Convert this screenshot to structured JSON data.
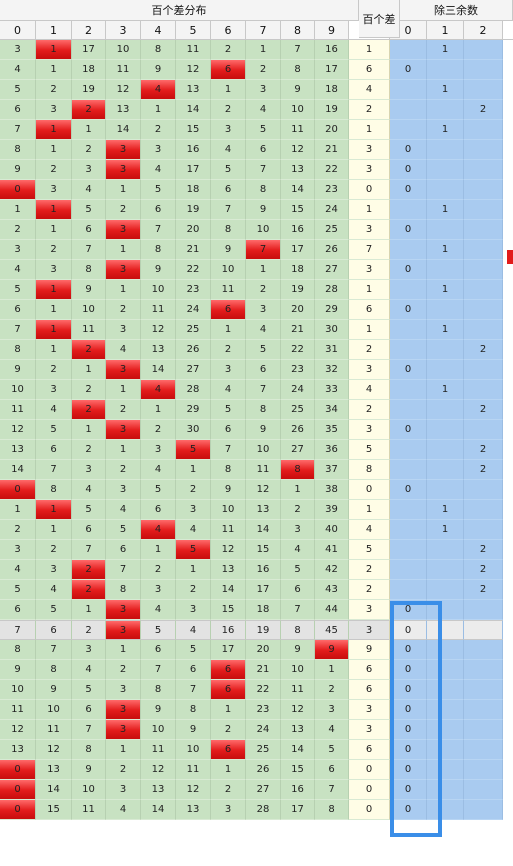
{
  "header": {
    "group_title": "百个差分布",
    "diff_title": "百个差",
    "remainder_title": "除三余数",
    "digit_labels": [
      "0",
      "1",
      "2",
      "3",
      "4",
      "5",
      "6",
      "7",
      "8",
      "9"
    ],
    "remainder_labels": [
      "0",
      "1",
      "2"
    ]
  },
  "colors": {
    "cell_green": "#c8e2c2",
    "hit_red": "#e21b1b",
    "diff_yellow": "#fffde6",
    "remainder_blue": "#a9cbf0",
    "highlight_box": "#3a8ee8"
  },
  "selected_row_index": 29,
  "rows": [
    {
      "cells": [
        "3",
        "1",
        "17",
        "10",
        "8",
        "11",
        "2",
        "1",
        "7",
        "16"
      ],
      "hit": 1,
      "diff": "1",
      "rem": [
        "",
        "1",
        ""
      ]
    },
    {
      "cells": [
        "4",
        "1",
        "18",
        "11",
        "9",
        "12",
        "6",
        "2",
        "8",
        "17"
      ],
      "hit": 6,
      "diff": "6",
      "rem": [
        "0",
        "",
        ""
      ]
    },
    {
      "cells": [
        "5",
        "2",
        "19",
        "12",
        "4",
        "13",
        "1",
        "3",
        "9",
        "18"
      ],
      "hit": 4,
      "diff": "4",
      "rem": [
        "",
        "1",
        ""
      ]
    },
    {
      "cells": [
        "6",
        "3",
        "2",
        "13",
        "1",
        "14",
        "2",
        "4",
        "10",
        "19"
      ],
      "hit": 2,
      "diff": "2",
      "rem": [
        "",
        "",
        "2"
      ]
    },
    {
      "cells": [
        "7",
        "1",
        "1",
        "14",
        "2",
        "15",
        "3",
        "5",
        "11",
        "20"
      ],
      "hit": 1,
      "diff": "1",
      "rem": [
        "",
        "1",
        ""
      ]
    },
    {
      "cells": [
        "8",
        "1",
        "2",
        "3",
        "3",
        "16",
        "4",
        "6",
        "12",
        "21"
      ],
      "hit": 3,
      "diff": "3",
      "rem": [
        "0",
        "",
        ""
      ]
    },
    {
      "cells": [
        "9",
        "2",
        "3",
        "3",
        "4",
        "17",
        "5",
        "7",
        "13",
        "22"
      ],
      "hit": 3,
      "diff": "3",
      "rem": [
        "0",
        "",
        ""
      ]
    },
    {
      "cells": [
        "0",
        "3",
        "4",
        "1",
        "5",
        "18",
        "6",
        "8",
        "14",
        "23"
      ],
      "hit": 0,
      "diff": "0",
      "rem": [
        "0",
        "",
        ""
      ]
    },
    {
      "cells": [
        "1",
        "1",
        "5",
        "2",
        "6",
        "19",
        "7",
        "9",
        "15",
        "24"
      ],
      "hit": 1,
      "diff": "1",
      "rem": [
        "",
        "1",
        ""
      ]
    },
    {
      "cells": [
        "2",
        "1",
        "6",
        "3",
        "7",
        "20",
        "8",
        "10",
        "16",
        "25"
      ],
      "hit": 3,
      "diff": "3",
      "rem": [
        "0",
        "",
        ""
      ]
    },
    {
      "cells": [
        "3",
        "2",
        "7",
        "1",
        "8",
        "21",
        "9",
        "7",
        "17",
        "26"
      ],
      "hit": 7,
      "diff": "7",
      "rem": [
        "",
        "1",
        ""
      ]
    },
    {
      "cells": [
        "4",
        "3",
        "8",
        "3",
        "9",
        "22",
        "10",
        "1",
        "18",
        "27"
      ],
      "hit": 3,
      "diff": "3",
      "rem": [
        "0",
        "",
        ""
      ]
    },
    {
      "cells": [
        "5",
        "1",
        "9",
        "1",
        "10",
        "23",
        "11",
        "2",
        "19",
        "28"
      ],
      "hit": 1,
      "diff": "1",
      "rem": [
        "",
        "1",
        ""
      ]
    },
    {
      "cells": [
        "6",
        "1",
        "10",
        "2",
        "11",
        "24",
        "6",
        "3",
        "20",
        "29"
      ],
      "hit": 6,
      "diff": "6",
      "rem": [
        "0",
        "",
        ""
      ]
    },
    {
      "cells": [
        "7",
        "1",
        "11",
        "3",
        "12",
        "25",
        "1",
        "4",
        "21",
        "30"
      ],
      "hit": 1,
      "diff": "1",
      "rem": [
        "",
        "1",
        ""
      ]
    },
    {
      "cells": [
        "8",
        "1",
        "2",
        "4",
        "13",
        "26",
        "2",
        "5",
        "22",
        "31"
      ],
      "hit": 2,
      "diff": "2",
      "rem": [
        "",
        "",
        "2"
      ]
    },
    {
      "cells": [
        "9",
        "2",
        "1",
        "3",
        "14",
        "27",
        "3",
        "6",
        "23",
        "32"
      ],
      "hit": 3,
      "diff": "3",
      "rem": [
        "0",
        "",
        ""
      ]
    },
    {
      "cells": [
        "10",
        "3",
        "2",
        "1",
        "4",
        "28",
        "4",
        "7",
        "24",
        "33"
      ],
      "hit": 4,
      "diff": "4",
      "rem": [
        "",
        "1",
        ""
      ]
    },
    {
      "cells": [
        "11",
        "4",
        "2",
        "2",
        "1",
        "29",
        "5",
        "8",
        "25",
        "34"
      ],
      "hit": 2,
      "diff": "2",
      "rem": [
        "",
        "",
        "2"
      ]
    },
    {
      "cells": [
        "12",
        "5",
        "1",
        "3",
        "2",
        "30",
        "6",
        "9",
        "26",
        "35"
      ],
      "hit": 3,
      "diff": "3",
      "rem": [
        "0",
        "",
        ""
      ]
    },
    {
      "cells": [
        "13",
        "6",
        "2",
        "1",
        "3",
        "5",
        "7",
        "10",
        "27",
        "36"
      ],
      "hit": 5,
      "diff": "5",
      "rem": [
        "",
        "",
        "2"
      ]
    },
    {
      "cells": [
        "14",
        "7",
        "3",
        "2",
        "4",
        "1",
        "8",
        "11",
        "8",
        "37"
      ],
      "hit": 8,
      "diff": "8",
      "rem": [
        "",
        "",
        "2"
      ]
    },
    {
      "cells": [
        "0",
        "8",
        "4",
        "3",
        "5",
        "2",
        "9",
        "12",
        "1",
        "38"
      ],
      "hit": 0,
      "diff": "0",
      "rem": [
        "0",
        "",
        ""
      ]
    },
    {
      "cells": [
        "1",
        "1",
        "5",
        "4",
        "6",
        "3",
        "10",
        "13",
        "2",
        "39"
      ],
      "hit": 1,
      "diff": "1",
      "rem": [
        "",
        "1",
        ""
      ]
    },
    {
      "cells": [
        "2",
        "1",
        "6",
        "5",
        "4",
        "4",
        "11",
        "14",
        "3",
        "40"
      ],
      "hit": 4,
      "diff": "4",
      "rem": [
        "",
        "1",
        ""
      ]
    },
    {
      "cells": [
        "3",
        "2",
        "7",
        "6",
        "1",
        "5",
        "12",
        "15",
        "4",
        "41"
      ],
      "hit": 5,
      "diff": "5",
      "rem": [
        "",
        "",
        "2"
      ]
    },
    {
      "cells": [
        "4",
        "3",
        "2",
        "7",
        "2",
        "1",
        "13",
        "16",
        "5",
        "42"
      ],
      "hit": 2,
      "diff": "2",
      "rem": [
        "",
        "",
        "2"
      ]
    },
    {
      "cells": [
        "5",
        "4",
        "2",
        "8",
        "3",
        "2",
        "14",
        "17",
        "6",
        "43"
      ],
      "hit": 2,
      "diff": "2",
      "rem": [
        "",
        "",
        "2"
      ]
    },
    {
      "cells": [
        "6",
        "5",
        "1",
        "3",
        "4",
        "3",
        "15",
        "18",
        "7",
        "44"
      ],
      "hit": 3,
      "diff": "3",
      "rem": [
        "0",
        "",
        ""
      ]
    },
    {
      "cells": [
        "7",
        "6",
        "2",
        "3",
        "5",
        "4",
        "16",
        "19",
        "8",
        "45"
      ],
      "hit": 3,
      "diff": "3",
      "rem": [
        "0",
        "",
        ""
      ]
    },
    {
      "cells": [
        "8",
        "7",
        "3",
        "1",
        "6",
        "5",
        "17",
        "20",
        "9",
        "9"
      ],
      "hit": 9,
      "diff": "9",
      "rem": [
        "0",
        "",
        ""
      ]
    },
    {
      "cells": [
        "9",
        "8",
        "4",
        "2",
        "7",
        "6",
        "6",
        "21",
        "10",
        "1"
      ],
      "hit": 6,
      "diff": "6",
      "rem": [
        "0",
        "",
        ""
      ]
    },
    {
      "cells": [
        "10",
        "9",
        "5",
        "3",
        "8",
        "7",
        "6",
        "22",
        "11",
        "2"
      ],
      "hit": 6,
      "diff": "6",
      "rem": [
        "0",
        "",
        ""
      ]
    },
    {
      "cells": [
        "11",
        "10",
        "6",
        "3",
        "9",
        "8",
        "1",
        "23",
        "12",
        "3"
      ],
      "hit": 3,
      "diff": "3",
      "rem": [
        "0",
        "",
        ""
      ]
    },
    {
      "cells": [
        "12",
        "11",
        "7",
        "3",
        "10",
        "9",
        "2",
        "24",
        "13",
        "4"
      ],
      "hit": 3,
      "diff": "3",
      "rem": [
        "0",
        "",
        ""
      ]
    },
    {
      "cells": [
        "13",
        "12",
        "8",
        "1",
        "11",
        "10",
        "6",
        "25",
        "14",
        "5"
      ],
      "hit": 6,
      "diff": "6",
      "rem": [
        "0",
        "",
        ""
      ]
    },
    {
      "cells": [
        "0",
        "13",
        "9",
        "2",
        "12",
        "11",
        "1",
        "26",
        "15",
        "6"
      ],
      "hit": 0,
      "diff": "0",
      "rem": [
        "0",
        "",
        ""
      ]
    },
    {
      "cells": [
        "0",
        "14",
        "10",
        "3",
        "13",
        "12",
        "2",
        "27",
        "16",
        "7"
      ],
      "hit": 0,
      "diff": "0",
      "rem": [
        "0",
        "",
        ""
      ]
    },
    {
      "cells": [
        "0",
        "15",
        "11",
        "4",
        "14",
        "13",
        "3",
        "28",
        "17",
        "8"
      ],
      "hit": 0,
      "diff": "0",
      "rem": [
        "0",
        "",
        ""
      ]
    }
  ]
}
